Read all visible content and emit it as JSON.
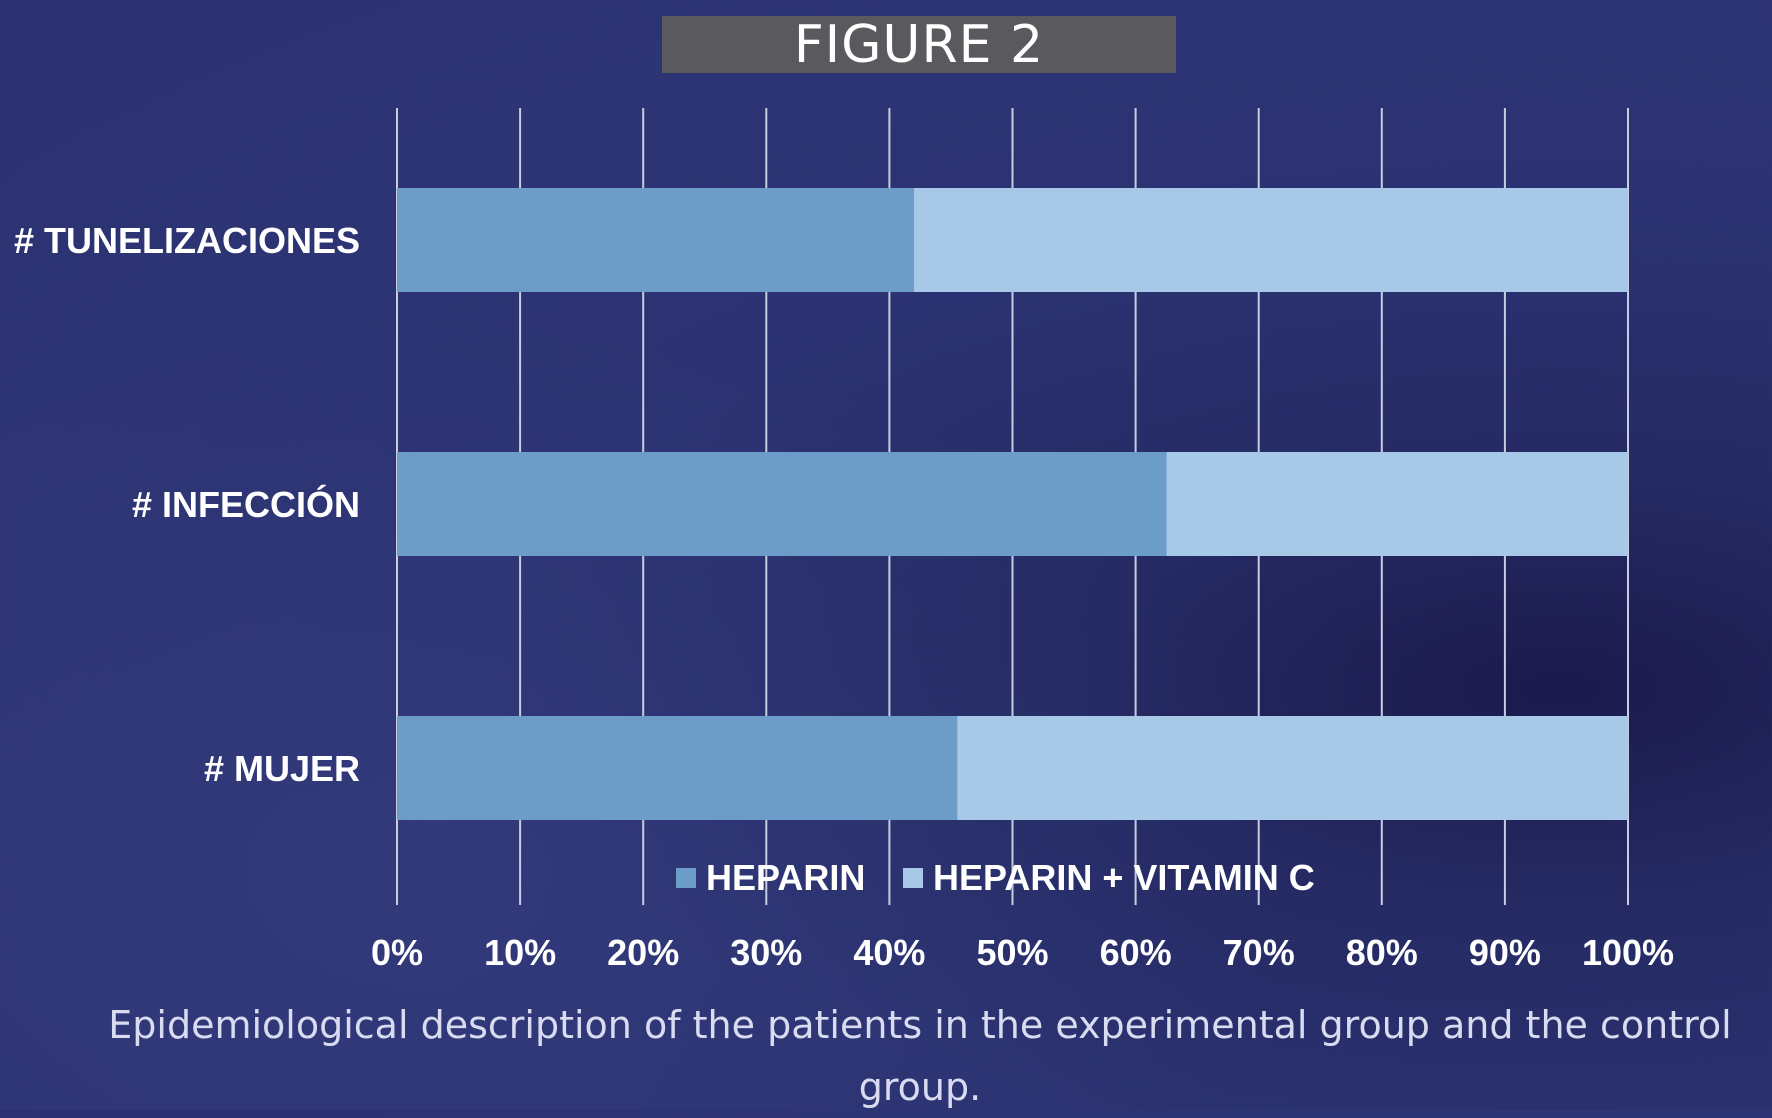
{
  "header": {
    "title": "FIGURE 2"
  },
  "caption": "Epidemiological description of the patients in the experimental group and the control group.",
  "colors": {
    "heparin": "#6b9dc8",
    "heparin_vitamin_c": "#a8c8e8",
    "gridline": "#c8cce0",
    "label_text": "#ffffff",
    "title_box": "#5a5a5e"
  },
  "chart_data": {
    "type": "bar",
    "orientation": "horizontal",
    "stacking": "percent",
    "title": "",
    "xlabel": "",
    "ylabel": "",
    "categories": [
      "# TUNELIZACIONES",
      "# INFECCIÓN",
      "# MUJER"
    ],
    "series": [
      {
        "name": "HEPARIN",
        "values": [
          42,
          62.5,
          45.5
        ]
      },
      {
        "name": "HEPARIN + VITAMIN C",
        "values": [
          58,
          37.5,
          54.5
        ]
      }
    ],
    "xlim": [
      0,
      100
    ],
    "x_ticks": [
      "0%",
      "10%",
      "20%",
      "30%",
      "40%",
      "50%",
      "60%",
      "70%",
      "80%",
      "90%",
      "100%"
    ],
    "grid": "vertical",
    "legend_position": "bottom"
  }
}
